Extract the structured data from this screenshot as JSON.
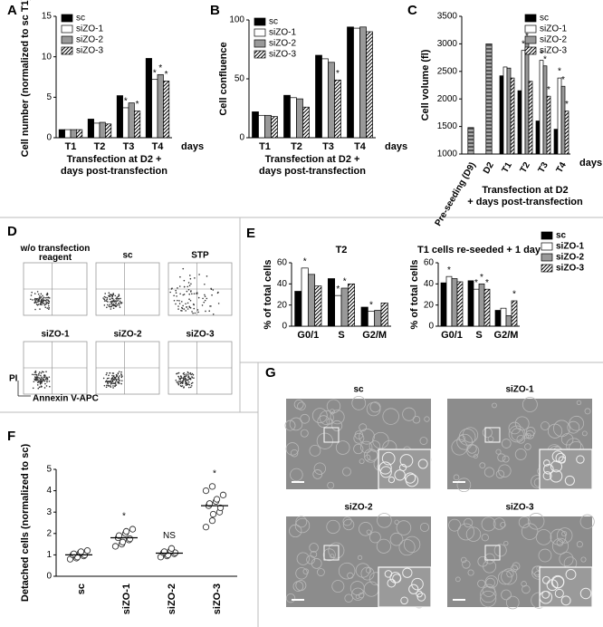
{
  "chart_data": [
    {
      "type": "bar",
      "panel": "A",
      "ylabel": "Cell number (normalized to sc T1)",
      "xlabel": [
        "Transfection at D2 +",
        "days post-transfection"
      ],
      "x_unit": "days",
      "categories": [
        "T1",
        "T2",
        "T3",
        "T4"
      ],
      "ylim": [
        0,
        15
      ],
      "yticks": [
        0,
        5,
        10,
        15
      ],
      "legend": "upper left",
      "series": [
        {
          "name": "sc",
          "color": "#000000",
          "values": [
            1,
            2.3,
            5.2,
            9.8
          ],
          "marks": [
            null,
            null,
            null,
            null
          ]
        },
        {
          "name": "siZO-1",
          "color": "#ffffff",
          "values": [
            1,
            1.8,
            3.7,
            7.2
          ],
          "marks": [
            null,
            null,
            "*",
            "*"
          ]
        },
        {
          "name": "siZO-2",
          "color": "#999999",
          "values": [
            1,
            1.9,
            4.3,
            7.8
          ],
          "marks": [
            null,
            null,
            null,
            "*"
          ]
        },
        {
          "name": "siZO-3",
          "color": "#000000",
          "pattern": "diagonal",
          "values": [
            1,
            1.7,
            3.3,
            7.0
          ],
          "marks": [
            null,
            null,
            "*",
            "*"
          ]
        }
      ]
    },
    {
      "type": "bar",
      "panel": "B",
      "ylabel": "Cell confluence",
      "xlabel": [
        "Transfection at D2 +",
        "days post-transfection"
      ],
      "x_unit": "days",
      "categories": [
        "T1",
        "T2",
        "T3",
        "T4"
      ],
      "ylim": [
        0,
        100
      ],
      "yticks": [
        0,
        50,
        100
      ],
      "legend": "upper left",
      "series": [
        {
          "name": "sc",
          "color": "#000000",
          "values": [
            22,
            36,
            70,
            94
          ],
          "marks": [
            null,
            null,
            null,
            null
          ]
        },
        {
          "name": "siZO-1",
          "color": "#ffffff",
          "values": [
            19,
            34,
            67,
            93
          ],
          "marks": [
            null,
            null,
            null,
            null
          ]
        },
        {
          "name": "siZO-2",
          "color": "#999999",
          "values": [
            19,
            33,
            64,
            94
          ],
          "marks": [
            null,
            null,
            null,
            null
          ]
        },
        {
          "name": "siZO-3",
          "color": "#000000",
          "pattern": "diagonal",
          "values": [
            18,
            26,
            49,
            90
          ],
          "marks": [
            null,
            null,
            "*",
            null
          ]
        }
      ]
    },
    {
      "type": "bar",
      "panel": "C",
      "ylabel": "Cell volume (fl)",
      "xlabel": [
        "Transfection at D2",
        "+ days post-transfection"
      ],
      "x_unit": "days",
      "categories": [
        "Pre-seeding (D9)",
        "D2",
        "T1",
        "T2",
        "T3",
        "T4"
      ],
      "ylim": [
        1000,
        3500
      ],
      "yticks": [
        1000,
        1500,
        2000,
        2500,
        3000,
        3500
      ],
      "legend": "upper right",
      "values": [
        1480,
        3000,
        null,
        null,
        null,
        null
      ],
      "color": "#aaaaaa",
      "pattern": "horizontal",
      "series": [
        {
          "name": "sc",
          "color": "#000000",
          "values": [
            null,
            null,
            2420,
            2150,
            1600,
            1450
          ],
          "marks": [
            null,
            null,
            null,
            null,
            null,
            null
          ]
        },
        {
          "name": "siZO-1",
          "color": "#ffffff",
          "values": [
            null,
            null,
            2580,
            2880,
            2700,
            2380
          ],
          "marks": [
            null,
            null,
            null,
            "*",
            "*",
            "*"
          ]
        },
        {
          "name": "siZO-2",
          "color": "#999999",
          "values": [
            null,
            null,
            2560,
            3020,
            2600,
            2230
          ],
          "marks": [
            null,
            null,
            null,
            "*",
            "*",
            "*"
          ]
        },
        {
          "name": "siZO-3",
          "color": "#000000",
          "pattern": "diagonal",
          "values": [
            null,
            null,
            2380,
            2320,
            2050,
            1780
          ],
          "marks": [
            null,
            null,
            null,
            null,
            "*",
            "*"
          ]
        }
      ]
    },
    {
      "type": "bar",
      "panel": "E",
      "title": "T2",
      "ylabel": "% of total cells",
      "categories": [
        "G0/1",
        "S",
        "G2/M"
      ],
      "ylim": [
        0,
        60
      ],
      "yticks": [
        0,
        20,
        40,
        60
      ],
      "series": [
        {
          "name": "sc",
          "color": "#000000",
          "values": [
            33,
            45,
            18
          ],
          "marks": [
            null,
            null,
            null
          ]
        },
        {
          "name": "siZO-1",
          "color": "#ffffff",
          "values": [
            55,
            29,
            14
          ],
          "marks": [
            "*",
            "*",
            "*"
          ]
        },
        {
          "name": "siZO-2",
          "color": "#999999",
          "values": [
            49,
            36,
            15
          ],
          "marks": [
            null,
            "*",
            null
          ]
        },
        {
          "name": "siZO-3",
          "color": "#000000",
          "pattern": "diagonal",
          "values": [
            38,
            40,
            22
          ],
          "marks": [
            null,
            null,
            null
          ]
        }
      ]
    },
    {
      "type": "bar",
      "title": "T1 cells re-seeded + 1 day",
      "ylabel": "% of total cells",
      "categories": [
        "G0/1",
        "S",
        "G2/M"
      ],
      "ylim": [
        0,
        60
      ],
      "yticks": [
        0,
        20,
        40,
        60
      ],
      "legend": "right",
      "series": [
        {
          "name": "sc",
          "color": "#000000",
          "values": [
            41,
            43,
            15
          ],
          "marks": [
            null,
            null,
            null
          ]
        },
        {
          "name": "siZO-1",
          "color": "#ffffff",
          "values": [
            47,
            35,
            17
          ],
          "marks": [
            "*",
            "*",
            null
          ]
        },
        {
          "name": "siZO-2",
          "color": "#999999",
          "values": [
            45,
            40,
            10
          ],
          "marks": [
            null,
            "*",
            null
          ]
        },
        {
          "name": "siZO-3",
          "color": "#000000",
          "pattern": "diagonal",
          "values": [
            42,
            35,
            24
          ],
          "marks": [
            null,
            "*",
            "*"
          ]
        }
      ]
    },
    {
      "type": "strip",
      "panel": "F",
      "ylabel": "Detached cells (normalized to sc)",
      "categories": [
        "sc",
        "siZO-1",
        "siZO-2",
        "siZO-3"
      ],
      "ylim": [
        0,
        5
      ],
      "yticks": [
        0,
        1,
        2,
        3,
        4,
        5
      ],
      "values": [
        [
          0.8,
          0.85,
          0.9,
          0.95,
          1.0,
          1.0,
          1.05,
          1.1,
          1.15,
          1.2
        ],
        [
          1.4,
          1.5,
          1.6,
          1.7,
          1.75,
          1.8,
          1.9,
          2.0,
          2.1,
          2.2
        ],
        [
          0.9,
          0.95,
          1.0,
          1.05,
          1.1,
          1.1,
          1.15,
          1.2,
          1.3
        ],
        [
          2.3,
          2.6,
          2.9,
          3.0,
          3.2,
          3.3,
          3.4,
          3.5,
          3.6,
          3.8,
          4.0,
          4.2
        ]
      ],
      "means": [
        1.0,
        1.8,
        1.08,
        3.3
      ],
      "annotations": [
        null,
        "*",
        "NS",
        "*"
      ]
    }
  ],
  "flow_cytometry": {
    "panel": "D",
    "y_label": "PI",
    "x_label": "Annexin V-APC",
    "plots": [
      {
        "label": "w/o transfection reagent"
      },
      {
        "label": "sc"
      },
      {
        "label": "STP"
      },
      {
        "label": "siZO-1"
      },
      {
        "label": "siZO-2"
      },
      {
        "label": "siZO-3"
      }
    ]
  },
  "micrographs": {
    "panel": "G",
    "images": [
      {
        "label": "sc"
      },
      {
        "label": "siZO-1"
      },
      {
        "label": "siZO-2"
      },
      {
        "label": "siZO-3"
      }
    ]
  }
}
